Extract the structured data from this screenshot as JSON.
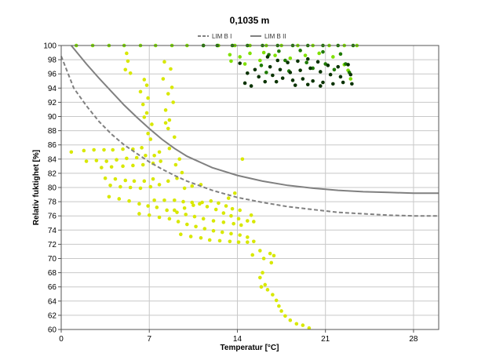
{
  "chart_data": {
    "type": "scatter",
    "title": "0,1035 m",
    "xlabel": "Temperatur [°C]",
    "ylabel": "Relativ fuktighet [%]",
    "xlim": [
      0,
      30
    ],
    "ylim": [
      60,
      100
    ],
    "x_ticks": [
      0,
      7,
      14,
      21,
      28
    ],
    "y_ticks": [
      60,
      62,
      64,
      66,
      68,
      70,
      72,
      74,
      76,
      78,
      80,
      82,
      84,
      86,
      88,
      90,
      92,
      94,
      96,
      98,
      100
    ],
    "grid": true,
    "legend_position": "top",
    "series": [
      {
        "name": "LIM B I",
        "kind": "line",
        "style": "dashed",
        "color": "#808080",
        "points": [
          [
            0,
            98.5
          ],
          [
            1,
            94
          ],
          [
            2,
            91.5
          ],
          [
            3,
            89.3
          ],
          [
            4,
            87.5
          ],
          [
            5,
            86
          ],
          [
            6,
            84.8
          ],
          [
            7,
            83.6
          ],
          [
            8,
            82.6
          ],
          [
            9,
            81.7
          ],
          [
            10,
            80.9
          ],
          [
            12,
            79.6
          ],
          [
            14,
            78.6
          ],
          [
            16,
            77.9
          ],
          [
            18,
            77.3
          ],
          [
            20,
            76.9
          ],
          [
            22,
            76.5
          ],
          [
            24,
            76.3
          ],
          [
            26,
            76.1
          ],
          [
            28,
            76.0
          ],
          [
            30,
            76.0
          ]
        ]
      },
      {
        "name": "LIM B II",
        "kind": "line",
        "style": "solid",
        "color": "#808080",
        "points": [
          [
            0.8,
            100
          ],
          [
            2,
            97.4
          ],
          [
            3,
            95.4
          ],
          [
            4,
            93.5
          ],
          [
            5,
            91.6
          ],
          [
            6,
            89.9
          ],
          [
            7,
            88.3
          ],
          [
            8,
            86.8
          ],
          [
            9,
            85.5
          ],
          [
            10,
            84.4
          ],
          [
            12,
            82.8
          ],
          [
            14,
            81.7
          ],
          [
            16,
            80.9
          ],
          [
            18,
            80.3
          ],
          [
            20,
            79.9
          ],
          [
            22,
            79.6
          ],
          [
            24,
            79.4
          ],
          [
            26,
            79.3
          ],
          [
            28,
            79.2
          ],
          [
            30,
            79.2
          ]
        ]
      }
    ],
    "scatter_series": [
      {
        "color": "#d8e800",
        "points": [
          [
            5.2,
            98.9
          ],
          [
            5.3,
            97.8
          ],
          [
            5.1,
            96.6
          ],
          [
            5.5,
            96.1
          ],
          [
            6.6,
            95.2
          ],
          [
            6.8,
            94.4
          ],
          [
            6.3,
            93.5
          ],
          [
            6.9,
            92.6
          ],
          [
            6.5,
            91.7
          ],
          [
            6.8,
            90.5
          ],
          [
            8.2,
            97.7
          ],
          [
            8.7,
            96.7
          ],
          [
            8.1,
            95.3
          ],
          [
            8.8,
            94.1
          ],
          [
            8.5,
            93.2
          ],
          [
            8.9,
            92.0
          ],
          [
            8.3,
            90.9
          ],
          [
            8.6,
            89.5
          ],
          [
            6.6,
            89.9
          ],
          [
            7.2,
            88.9
          ],
          [
            6.9,
            87.6
          ],
          [
            7.1,
            86.8
          ],
          [
            8.3,
            89.1
          ],
          [
            8.5,
            88.3
          ],
          [
            9.0,
            87.1
          ],
          [
            0.8,
            85.0
          ],
          [
            1.8,
            85.2
          ],
          [
            2.6,
            85.3
          ],
          [
            3.4,
            85.3
          ],
          [
            4.1,
            85.3
          ],
          [
            4.9,
            85.4
          ],
          [
            5.7,
            85.4
          ],
          [
            6.4,
            85.6
          ],
          [
            2.0,
            83.7
          ],
          [
            2.8,
            83.8
          ],
          [
            3.6,
            83.7
          ],
          [
            4.4,
            83.9
          ],
          [
            5.2,
            84.1
          ],
          [
            6.0,
            84.2
          ],
          [
            6.7,
            84.5
          ],
          [
            7.4,
            84.5
          ],
          [
            7.8,
            85.0
          ],
          [
            3.2,
            82.8
          ],
          [
            4.0,
            82.9
          ],
          [
            4.9,
            83.0
          ],
          [
            5.7,
            83.1
          ],
          [
            6.5,
            83.2
          ],
          [
            7.3,
            83.4
          ],
          [
            7.9,
            83.7
          ],
          [
            3.5,
            81.3
          ],
          [
            4.3,
            81.2
          ],
          [
            5.1,
            81.0
          ],
          [
            5.8,
            80.9
          ],
          [
            6.6,
            80.9
          ],
          [
            7.3,
            81.2
          ],
          [
            3.9,
            80.3
          ],
          [
            4.7,
            80.1
          ],
          [
            5.5,
            80.0
          ],
          [
            6.3,
            79.9
          ],
          [
            7.1,
            80.1
          ],
          [
            7.8,
            80.4
          ],
          [
            8.5,
            80.9
          ],
          [
            9.2,
            81.3
          ],
          [
            9.6,
            82.1
          ],
          [
            9.1,
            83.2
          ],
          [
            9.4,
            84.0
          ],
          [
            8.6,
            85.5
          ],
          [
            9.8,
            79.9
          ],
          [
            10.4,
            80.2
          ],
          [
            11.1,
            80.4
          ],
          [
            3.8,
            78.7
          ],
          [
            4.6,
            78.4
          ],
          [
            5.4,
            78.1
          ],
          [
            6.2,
            77.7
          ],
          [
            6.9,
            77.4
          ],
          [
            7.6,
            77.2
          ],
          [
            8.4,
            76.8
          ],
          [
            9.2,
            76.5
          ],
          [
            9.9,
            76.2
          ],
          [
            10.6,
            75.9
          ],
          [
            11.3,
            75.6
          ],
          [
            12.1,
            75.3
          ],
          [
            12.9,
            75.1
          ],
          [
            13.7,
            74.9
          ],
          [
            14.3,
            74.7
          ],
          [
            7.4,
            78.2
          ],
          [
            8.2,
            78.2
          ],
          [
            9.0,
            78.2
          ],
          [
            9.7,
            78.0
          ],
          [
            10.4,
            77.9
          ],
          [
            11.0,
            77.7
          ],
          [
            11.6,
            77.3
          ],
          [
            12.3,
            76.9
          ],
          [
            12.9,
            76.4
          ],
          [
            13.5,
            76.0
          ],
          [
            14.1,
            75.6
          ],
          [
            14.8,
            75.3
          ],
          [
            15.3,
            75.2
          ],
          [
            15.1,
            76.1
          ],
          [
            6.2,
            76.3
          ],
          [
            7.0,
            76.1
          ],
          [
            7.8,
            75.8
          ],
          [
            8.6,
            75.6
          ],
          [
            9.3,
            75.2
          ],
          [
            10.0,
            74.8
          ],
          [
            10.7,
            74.5
          ],
          [
            11.4,
            74.2
          ],
          [
            12.1,
            73.9
          ],
          [
            12.8,
            73.7
          ],
          [
            13.5,
            73.5
          ],
          [
            14.2,
            73.3
          ],
          [
            14.8,
            73.0
          ],
          [
            9.5,
            73.4
          ],
          [
            10.3,
            73.1
          ],
          [
            11.1,
            72.9
          ],
          [
            11.8,
            72.6
          ],
          [
            12.6,
            72.5
          ],
          [
            13.4,
            72.4
          ],
          [
            14.1,
            72.3
          ],
          [
            14.8,
            72.3
          ],
          [
            15.3,
            72.4
          ],
          [
            9.0,
            76.8
          ],
          [
            9.8,
            77.1
          ],
          [
            10.5,
            77.5
          ],
          [
            11.2,
            77.9
          ],
          [
            11.9,
            78.1
          ],
          [
            12.5,
            77.8
          ],
          [
            13.1,
            77.4
          ],
          [
            13.6,
            77.0
          ],
          [
            14.2,
            76.8
          ],
          [
            13.3,
            78.5
          ],
          [
            13.8,
            79.2
          ],
          [
            14.4,
            84.0
          ],
          [
            15.8,
            71.1
          ],
          [
            15.2,
            70.5
          ],
          [
            16.1,
            70.0
          ],
          [
            16.6,
            70.7
          ],
          [
            16.9,
            70.4
          ],
          [
            16.7,
            69.4
          ],
          [
            16.0,
            68.0
          ],
          [
            15.8,
            67.3
          ],
          [
            16.2,
            66.3
          ],
          [
            15.9,
            66.0
          ],
          [
            16.4,
            65.6
          ],
          [
            16.8,
            64.9
          ],
          [
            17.1,
            64.1
          ],
          [
            17.3,
            63.3
          ],
          [
            17.5,
            62.6
          ],
          [
            17.8,
            61.9
          ],
          [
            18.2,
            61.3
          ],
          [
            18.7,
            60.8
          ],
          [
            19.2,
            60.6
          ],
          [
            19.7,
            60.2
          ]
        ]
      },
      {
        "color": "#7fe000",
        "points": [
          [
            1.2,
            100
          ],
          [
            2.5,
            100
          ],
          [
            3.8,
            100
          ],
          [
            5.0,
            100
          ],
          [
            6.3,
            100
          ],
          [
            7.5,
            100
          ],
          [
            8.8,
            100
          ],
          [
            10.0,
            100
          ],
          [
            11.3,
            100
          ],
          [
            12.5,
            100
          ],
          [
            13.8,
            100
          ],
          [
            15.0,
            100
          ],
          [
            16.3,
            100
          ],
          [
            17.5,
            100
          ],
          [
            18.8,
            100
          ],
          [
            20.0,
            100
          ],
          [
            21.3,
            100
          ],
          [
            22.5,
            100
          ],
          [
            23.5,
            100
          ],
          [
            13.4,
            98.7
          ],
          [
            14.2,
            98.4
          ],
          [
            15.0,
            98.9
          ],
          [
            16.1,
            99.0
          ],
          [
            17.0,
            98.6
          ],
          [
            18.2,
            98.2
          ],
          [
            19.4,
            98.6
          ],
          [
            20.5,
            98.9
          ],
          [
            21.6,
            98.4
          ],
          [
            22.5,
            97.3
          ],
          [
            22.8,
            96.5
          ],
          [
            13.5,
            97.8
          ],
          [
            14.6,
            97.4
          ],
          [
            15.8,
            97.9
          ],
          [
            23.0,
            95.3
          ]
        ]
      },
      {
        "color": "#1e7a00",
        "points": [
          [
            11.3,
            100
          ],
          [
            12.4,
            100
          ],
          [
            13.6,
            100
          ],
          [
            14.8,
            100
          ],
          [
            16.0,
            100
          ],
          [
            17.2,
            100
          ],
          [
            18.4,
            100
          ],
          [
            19.6,
            100
          ],
          [
            20.8,
            100
          ],
          [
            22.0,
            100
          ],
          [
            23.2,
            100
          ],
          [
            17.3,
            99.2
          ],
          [
            16.5,
            98.7
          ],
          [
            19.0,
            99.3
          ],
          [
            20.8,
            99.1
          ],
          [
            22.2,
            98.8
          ],
          [
            15.9,
            97.2
          ],
          [
            17.8,
            97.9
          ],
          [
            19.5,
            97.6
          ],
          [
            21.0,
            97.4
          ],
          [
            22.6,
            97.4
          ],
          [
            16.3,
            96.2
          ],
          [
            18.1,
            96.4
          ],
          [
            20.0,
            96.8
          ],
          [
            21.7,
            96.6
          ],
          [
            22.9,
            96.2
          ]
        ]
      },
      {
        "color": "#0a3300",
        "points": [
          [
            16.4,
            98.4
          ],
          [
            17.2,
            97.9
          ],
          [
            18.0,
            97.6
          ],
          [
            18.8,
            97.8
          ],
          [
            19.6,
            98.1
          ],
          [
            20.4,
            97.7
          ],
          [
            21.2,
            97.2
          ],
          [
            22.0,
            97.0
          ],
          [
            22.8,
            97.3
          ],
          [
            16.6,
            97.0
          ],
          [
            17.4,
            96.6
          ],
          [
            18.2,
            96.2
          ],
          [
            19.0,
            96.5
          ],
          [
            19.8,
            96.8
          ],
          [
            20.6,
            96.3
          ],
          [
            21.4,
            95.9
          ],
          [
            22.2,
            95.6
          ],
          [
            23.0,
            95.9
          ],
          [
            16.8,
            95.8
          ],
          [
            17.6,
            95.4
          ],
          [
            18.4,
            95.1
          ],
          [
            19.2,
            95.3
          ],
          [
            20.0,
            95.0
          ],
          [
            20.8,
            94.8
          ],
          [
            21.6,
            94.6
          ],
          [
            22.4,
            94.8
          ],
          [
            23.1,
            94.6
          ],
          [
            17.1,
            94.9
          ],
          [
            18.6,
            94.4
          ],
          [
            19.6,
            94.5
          ],
          [
            20.6,
            94.3
          ],
          [
            14.2,
            97.5
          ],
          [
            14.8,
            96.1
          ],
          [
            15.4,
            96.6
          ],
          [
            15.7,
            95.6
          ],
          [
            16.2,
            94.9
          ],
          [
            14.6,
            94.7
          ],
          [
            15.1,
            94.3
          ]
        ]
      }
    ]
  }
}
